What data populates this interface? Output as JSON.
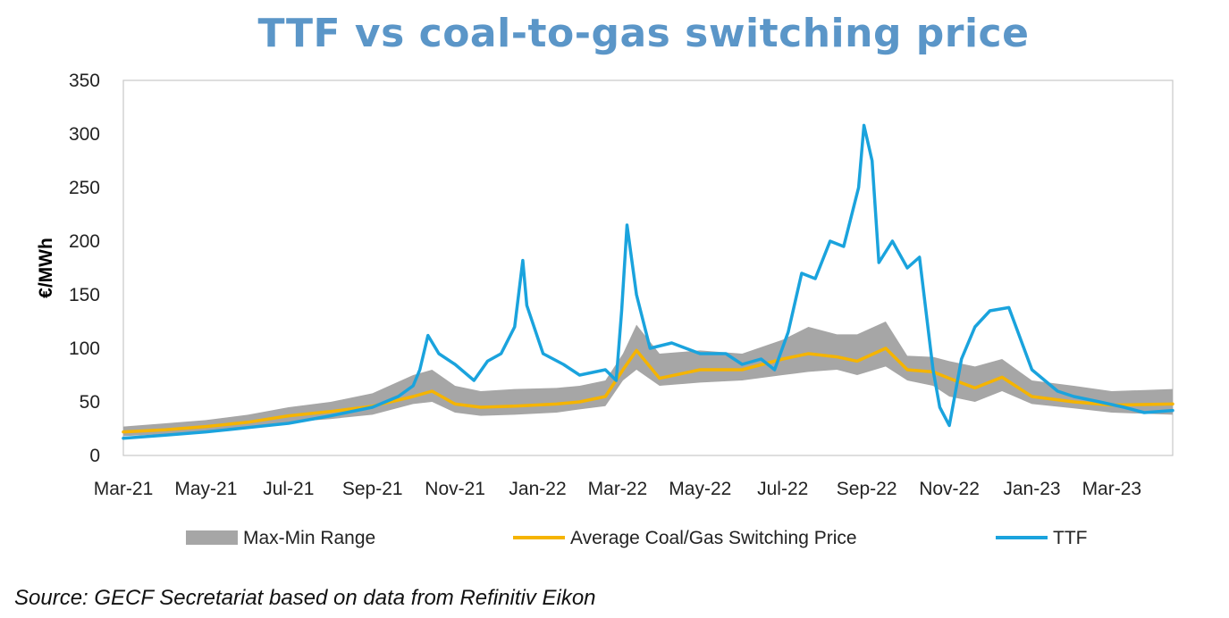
{
  "title": "TTF vs coal-to-gas switching price",
  "source": "Source: GECF Secretariat based on data from Refinitiv Eikon",
  "colors": {
    "range": "#a6a6a6",
    "average": "#f5b400",
    "ttf": "#1aa3dd",
    "title": "#5b96c8"
  },
  "chart_data": {
    "type": "line",
    "ylabel": "€/MWh",
    "ylim": [
      0,
      350
    ],
    "yticks": [
      0,
      50,
      100,
      150,
      200,
      250,
      300,
      350
    ],
    "xlim": [
      "2021-03-01",
      "2023-04-15"
    ],
    "xtick_labels": [
      "Mar-21",
      "May-21",
      "Jul-21",
      "Sep-21",
      "Nov-21",
      "Jan-22",
      "Mar-22",
      "May-22",
      "Jul-22",
      "Sep-22",
      "Nov-22",
      "Jan-23",
      "Mar-23"
    ],
    "xtick_dates": [
      "2021-03-01",
      "2021-05-01",
      "2021-07-01",
      "2021-09-01",
      "2021-11-01",
      "2022-01-01",
      "2022-03-01",
      "2022-05-01",
      "2022-07-01",
      "2022-09-01",
      "2022-11-01",
      "2023-01-01",
      "2023-03-01"
    ],
    "grid": false,
    "legend": "bottom",
    "series": [
      {
        "name": "Max-Min Range",
        "kind": "band",
        "x": [
          "2021-03-01",
          "2021-04-01",
          "2021-05-01",
          "2021-06-01",
          "2021-07-01",
          "2021-08-01",
          "2021-09-01",
          "2021-10-01",
          "2021-10-15",
          "2021-11-01",
          "2021-11-20",
          "2021-12-15",
          "2022-01-15",
          "2022-02-01",
          "2022-02-20",
          "2022-03-05",
          "2022-03-15",
          "2022-04-01",
          "2022-05-01",
          "2022-06-01",
          "2022-07-01",
          "2022-07-20",
          "2022-08-10",
          "2022-08-25",
          "2022-09-15",
          "2022-10-01",
          "2022-10-20",
          "2022-11-01",
          "2022-11-20",
          "2022-12-10",
          "2023-01-01",
          "2023-02-01",
          "2023-03-01",
          "2023-04-15"
        ],
        "upper": [
          27,
          30,
          33,
          38,
          45,
          50,
          58,
          75,
          80,
          65,
          60,
          62,
          63,
          65,
          70,
          95,
          122,
          95,
          98,
          95,
          108,
          120,
          113,
          113,
          125,
          93,
          92,
          88,
          83,
          90,
          70,
          65,
          60,
          62
        ],
        "lower": [
          18,
          20,
          22,
          26,
          31,
          34,
          38,
          48,
          50,
          40,
          37,
          38,
          40,
          43,
          46,
          70,
          80,
          65,
          68,
          70,
          75,
          78,
          80,
          75,
          83,
          70,
          65,
          55,
          50,
          60,
          48,
          44,
          40,
          38
        ]
      },
      {
        "name": "Average Coal/Gas Switching Price",
        "kind": "line",
        "x": [
          "2021-03-01",
          "2021-04-01",
          "2021-05-01",
          "2021-06-01",
          "2021-07-01",
          "2021-08-01",
          "2021-09-01",
          "2021-10-01",
          "2021-10-15",
          "2021-11-01",
          "2021-11-20",
          "2021-12-15",
          "2022-01-15",
          "2022-02-01",
          "2022-02-20",
          "2022-03-05",
          "2022-03-15",
          "2022-04-01",
          "2022-05-01",
          "2022-06-01",
          "2022-07-01",
          "2022-07-20",
          "2022-08-10",
          "2022-08-25",
          "2022-09-15",
          "2022-10-01",
          "2022-10-20",
          "2022-11-01",
          "2022-11-20",
          "2022-12-10",
          "2023-01-01",
          "2023-02-01",
          "2023-03-01",
          "2023-04-15"
        ],
        "values": [
          22,
          24,
          27,
          31,
          37,
          41,
          46,
          55,
          60,
          48,
          45,
          46,
          48,
          50,
          55,
          80,
          98,
          72,
          80,
          80,
          90,
          95,
          92,
          88,
          100,
          80,
          78,
          72,
          63,
          73,
          55,
          50,
          47,
          48
        ]
      },
      {
        "name": "TTF",
        "kind": "line",
        "x": [
          "2021-03-01",
          "2021-04-01",
          "2021-05-01",
          "2021-06-01",
          "2021-07-01",
          "2021-08-01",
          "2021-09-01",
          "2021-09-20",
          "2021-10-01",
          "2021-10-06",
          "2021-10-12",
          "2021-10-20",
          "2021-11-01",
          "2021-11-15",
          "2021-11-25",
          "2021-12-05",
          "2021-12-15",
          "2021-12-21",
          "2021-12-24",
          "2022-01-05",
          "2022-01-20",
          "2022-02-01",
          "2022-02-20",
          "2022-02-28",
          "2022-03-04",
          "2022-03-08",
          "2022-03-15",
          "2022-03-25",
          "2022-04-10",
          "2022-05-01",
          "2022-05-20",
          "2022-06-01",
          "2022-06-15",
          "2022-06-25",
          "2022-07-05",
          "2022-07-15",
          "2022-07-25",
          "2022-08-05",
          "2022-08-15",
          "2022-08-26",
          "2022-08-30",
          "2022-09-05",
          "2022-09-10",
          "2022-09-20",
          "2022-10-01",
          "2022-10-10",
          "2022-10-20",
          "2022-10-25",
          "2022-11-01",
          "2022-11-10",
          "2022-11-20",
          "2022-12-01",
          "2022-12-15",
          "2023-01-01",
          "2023-01-20",
          "2023-02-01",
          "2023-02-20",
          "2023-03-10",
          "2023-03-25",
          "2023-04-15"
        ],
        "values": [
          16,
          19,
          22,
          26,
          30,
          37,
          45,
          55,
          65,
          80,
          112,
          95,
          85,
          70,
          88,
          95,
          120,
          182,
          140,
          95,
          85,
          75,
          80,
          70,
          135,
          215,
          150,
          100,
          105,
          95,
          95,
          85,
          90,
          80,
          115,
          170,
          165,
          200,
          195,
          250,
          308,
          275,
          180,
          200,
          175,
          185,
          80,
          45,
          28,
          90,
          120,
          135,
          138,
          80,
          60,
          55,
          50,
          45,
          40,
          42
        ]
      }
    ]
  }
}
